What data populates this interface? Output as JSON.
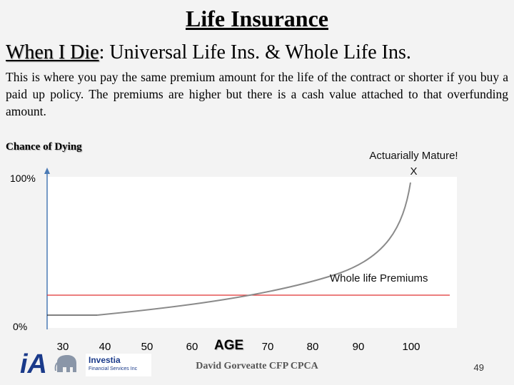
{
  "slide": {
    "title": "Life Insurance",
    "subtitle_key": "When I Die",
    "subtitle_rest": ": Universal Life Ins. & Whole Life Ins.",
    "body": "This is where you pay the same premium amount for the life of the contract or shorter if you buy a paid up policy. The premiums are higher but there is a cash value attached to that overfunding amount.",
    "footer": "David Gorveatte CFP CPCA",
    "page_number": "49"
  },
  "diagram": {
    "y_label": "Chance of Dying",
    "y_top": "100%",
    "y_bottom": "0%",
    "x_label": "AGE",
    "x_ticks": [
      "30",
      "40",
      "50",
      "60",
      "70",
      "80",
      "90",
      "100"
    ],
    "annotation_mature_line1": "Actuarially Mature!",
    "annotation_mature_line2": "X",
    "annotation_premium": "Whole life Premiums",
    "colors": {
      "curve": "#888888",
      "premium_line": "#e03030",
      "axis": "#4a7ab5",
      "plot_bg": "#ffffff"
    }
  },
  "logo": {
    "brand": "iA",
    "name": "Investia",
    "tagline": "Financial Services Inc"
  }
}
